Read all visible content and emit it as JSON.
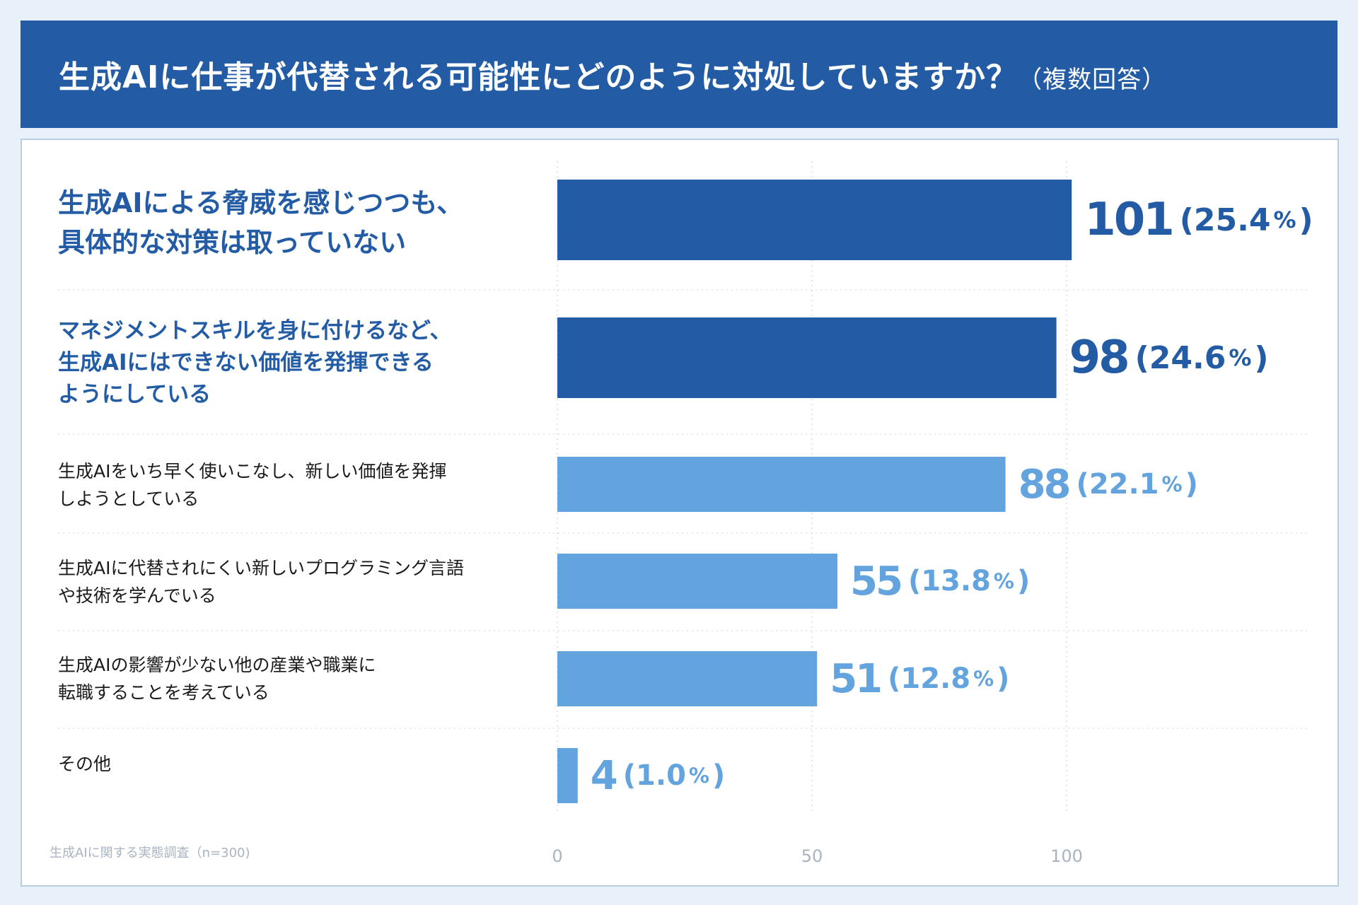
{
  "title": {
    "main": "生成AIに仕事が代替される可能性にどのように対処していますか？",
    "sub": "（複数回答）"
  },
  "colors": {
    "primary": "#235ca4",
    "secondary": "#63a3de"
  },
  "source": "生成AIに関する実態調査（n=300)",
  "labels": [
    [
      "生成AIによる脅威を感じつつも、",
      "具体的な対策は取っていない"
    ],
    [
      "マネジメントスキルを身に付けるなど、",
      "生成AIにはできない価値を発揮できる",
      "ようにしている"
    ],
    [
      "生成AIをいち早く使いこなし、新しい価値を発揮",
      "しようとしている"
    ],
    [
      "生成AIに代替されにくい新しいプログラミング言語",
      "や技術を学んでいる"
    ],
    [
      "生成AIの影響が少ない他の産業や職業に",
      "転職することを考えている"
    ],
    [
      "その他"
    ]
  ],
  "chart_data": {
    "type": "bar",
    "orientation": "horizontal",
    "title": "生成AIに仕事が代替される可能性にどのように対処していますか？（複数回答）",
    "categories": [
      "生成AIによる脅威を感じつつも、具体的な対策は取っていない",
      "マネジメントスキルを身に付けるなど、生成AIにはできない価値を発揮できるようにしている",
      "生成AIをいち早く使いこなし、新しい価値を発揮しようとしている",
      "生成AIに代替されにくい新しいプログラミング言語や技術を学んでいる",
      "生成AIの影響が少ない他の産業や職業に転職することを考えている",
      "その他"
    ],
    "values": [
      101,
      98,
      88,
      55,
      51,
      4
    ],
    "value_labels": [
      "101",
      "98",
      "88",
      "55",
      "51",
      "4"
    ],
    "percents": [
      "25.4",
      "24.6",
      "22.1",
      "13.8",
      "12.8",
      "1.0"
    ],
    "xlim": [
      0,
      150
    ],
    "xticks": [
      0,
      50,
      100
    ],
    "xtick_labels": [
      "0",
      "50",
      "100"
    ],
    "grid": true
  }
}
